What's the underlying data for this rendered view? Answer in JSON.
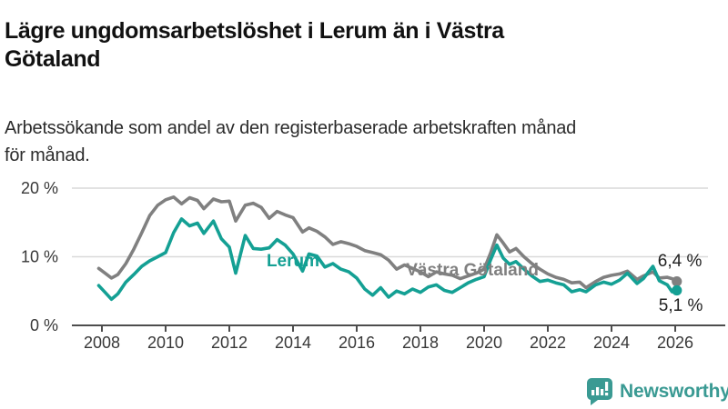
{
  "title": {
    "line1": "Lägre ungdomsarbetslöshet i Lerum än i Västra",
    "line2": "Götaland"
  },
  "subtitle": {
    "line1": "Arbetssökande som andel av den registerbaserade arbetskraften månad",
    "line2": "för månad."
  },
  "footer": {
    "brand": "Newsworthy",
    "logo_icon": "newsworthy-chart-bubble-icon"
  },
  "colors": {
    "background": "#ffffff",
    "title_text": "#111111",
    "subtitle_text": "#2b2b2b",
    "axis": "#4d4d4d",
    "tick_label": "#383838",
    "gridline": "#d9d9d9",
    "lerum": "#14a094",
    "vastra_gotaland": "#808080",
    "annotation_text": "#222222",
    "brand_teal": "#3a9a93"
  },
  "chart_data": {
    "type": "line",
    "title": "Lägre ungdomsarbetslöshet i Lerum än i Västra Götaland",
    "subtitle": "Arbetssökande som andel av den registerbaserade arbetskraften månad för månad.",
    "xlabel": "",
    "ylabel": "",
    "unit": "%",
    "grid": "horizontal",
    "legend": "inline-labels",
    "xlim": [
      2007.6,
      2026.6
    ],
    "ylim": [
      0,
      21
    ],
    "xticks": [
      2008,
      2010,
      2012,
      2014,
      2016,
      2018,
      2020,
      2022,
      2024,
      2026
    ],
    "yticks": [
      {
        "value": 0,
        "label": "0 %"
      },
      {
        "value": 10,
        "label": "10 %"
      },
      {
        "value": 20,
        "label": "20 %"
      }
    ],
    "x": [
      2007.9,
      2008.1,
      2008.3,
      2008.5,
      2008.75,
      2009.0,
      2009.25,
      2009.5,
      2009.75,
      2010.0,
      2010.25,
      2010.5,
      2010.75,
      2011.0,
      2011.2,
      2011.5,
      2011.75,
      2012.0,
      2012.2,
      2012.5,
      2012.75,
      2013.0,
      2013.25,
      2013.5,
      2013.75,
      2014.0,
      2014.3,
      2014.5,
      2014.75,
      2015.0,
      2015.25,
      2015.5,
      2015.75,
      2016.0,
      2016.25,
      2016.5,
      2016.75,
      2017.0,
      2017.25,
      2017.5,
      2017.75,
      2018.0,
      2018.25,
      2018.5,
      2018.75,
      2019.0,
      2019.25,
      2019.5,
      2019.75,
      2020.0,
      2020.2,
      2020.4,
      2020.6,
      2020.8,
      2021.0,
      2021.25,
      2021.5,
      2021.75,
      2022.0,
      2022.25,
      2022.5,
      2022.75,
      2023.0,
      2023.2,
      2023.5,
      2023.75,
      2024.0,
      2024.25,
      2024.5,
      2024.8,
      2025.0,
      2025.3,
      2025.5,
      2025.75,
      2025.9,
      2026.05
    ],
    "series": [
      {
        "name": "Västra Götaland",
        "color": "#808080",
        "end_label": "6,4 %",
        "end_value": 6.4,
        "values": [
          8.3,
          7.6,
          6.9,
          7.4,
          9.0,
          11.1,
          13.5,
          16.0,
          17.5,
          18.3,
          18.7,
          17.7,
          18.6,
          18.2,
          17.0,
          18.4,
          18.0,
          18.1,
          15.2,
          17.5,
          17.8,
          17.2,
          15.6,
          16.6,
          16.1,
          15.7,
          13.6,
          14.2,
          13.7,
          12.9,
          11.8,
          12.2,
          11.9,
          11.5,
          10.9,
          10.6,
          10.3,
          9.5,
          8.2,
          8.8,
          8.3,
          7.8,
          7.1,
          7.8,
          7.5,
          7.3,
          6.8,
          7.2,
          7.6,
          8.2,
          10.5,
          13.2,
          12.0,
          10.7,
          11.2,
          10.0,
          9.0,
          8.2,
          7.5,
          7.0,
          6.7,
          6.2,
          6.3,
          5.5,
          6.4,
          7.0,
          7.3,
          7.5,
          7.9,
          6.7,
          7.2,
          7.8,
          6.9,
          7.0,
          6.8,
          6.4
        ]
      },
      {
        "name": "Lerum",
        "color": "#14a094",
        "end_label": "5,1 %",
        "end_value": 5.1,
        "values": [
          5.8,
          4.8,
          3.8,
          4.6,
          6.3,
          7.4,
          8.6,
          9.4,
          10.0,
          10.6,
          13.5,
          15.5,
          14.5,
          14.9,
          13.4,
          15.2,
          12.6,
          11.4,
          7.6,
          13.1,
          11.2,
          11.1,
          11.3,
          12.5,
          11.7,
          10.4,
          7.9,
          10.4,
          10.1,
          8.5,
          9.0,
          8.2,
          7.8,
          6.9,
          5.3,
          4.4,
          5.5,
          4.1,
          5.0,
          4.6,
          5.3,
          4.8,
          5.6,
          5.9,
          5.1,
          4.8,
          5.5,
          6.2,
          6.7,
          7.1,
          9.5,
          11.7,
          9.8,
          8.9,
          9.3,
          8.2,
          7.2,
          6.4,
          6.6,
          6.2,
          5.9,
          4.9,
          5.2,
          4.9,
          5.9,
          6.3,
          6.0,
          6.6,
          7.6,
          6.1,
          6.8,
          8.6,
          6.5,
          5.9,
          4.9,
          5.1
        ]
      }
    ],
    "annotations": [
      {
        "text": "Lerum",
        "x": 2014.0,
        "y": 8.6,
        "color": "#14a094",
        "anchor": "middle",
        "bold": true,
        "size": 19
      },
      {
        "text": "Västra Götaland",
        "x": 2017.55,
        "y": 7.3,
        "color": "#808080",
        "anchor": "start",
        "bold": true,
        "size": 19
      },
      {
        "text": "6,4 %",
        "x": 2025.45,
        "y": 8.6,
        "color": "#222222",
        "anchor": "start",
        "bold": false,
        "size": 19
      },
      {
        "text": "5,1 %",
        "x": 2025.48,
        "y": 2.1,
        "color": "#222222",
        "anchor": "start",
        "bold": false,
        "size": 19
      }
    ]
  }
}
